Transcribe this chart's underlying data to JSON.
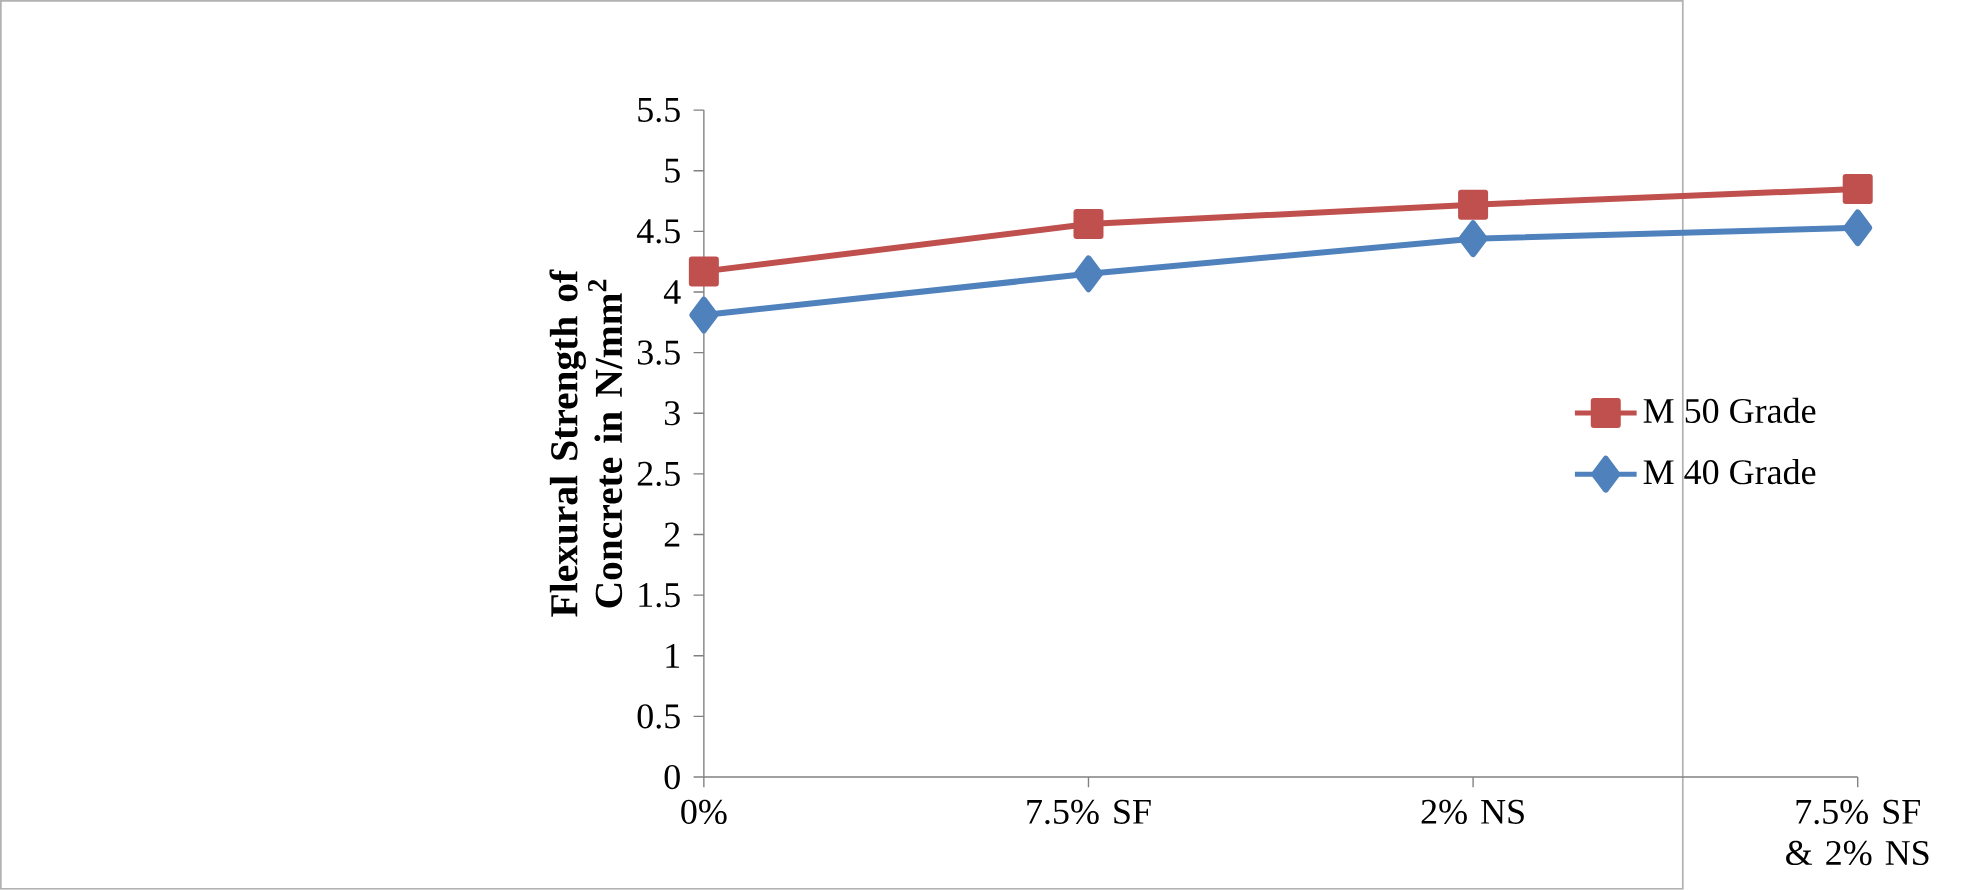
{
  "chart_data": {
    "type": "line",
    "ylabel": "Flexural Strength of Concrete in N/mm$^{2}$",
    "categories": [
      "0%",
      "7.5% SF",
      "2% NS",
      "7.5% SF & 2% NS"
    ],
    "series": [
      {
        "name": "M 50 Grade",
        "color": "#c0504d",
        "marker": "square",
        "values": [
          4.17,
          4.56,
          4.72,
          4.85
        ]
      },
      {
        "name": "M 40 Grade",
        "color": "#4f81bd",
        "marker": "diamond",
        "values": [
          3.81,
          4.15,
          4.44,
          4.53
        ]
      }
    ],
    "ylim": [
      0,
      5.5
    ],
    "yticks": [
      0,
      0.5,
      1,
      1.5,
      2,
      2.5,
      3,
      3.5,
      4,
      4.5,
      5,
      5.5
    ],
    "legend": "right"
  }
}
